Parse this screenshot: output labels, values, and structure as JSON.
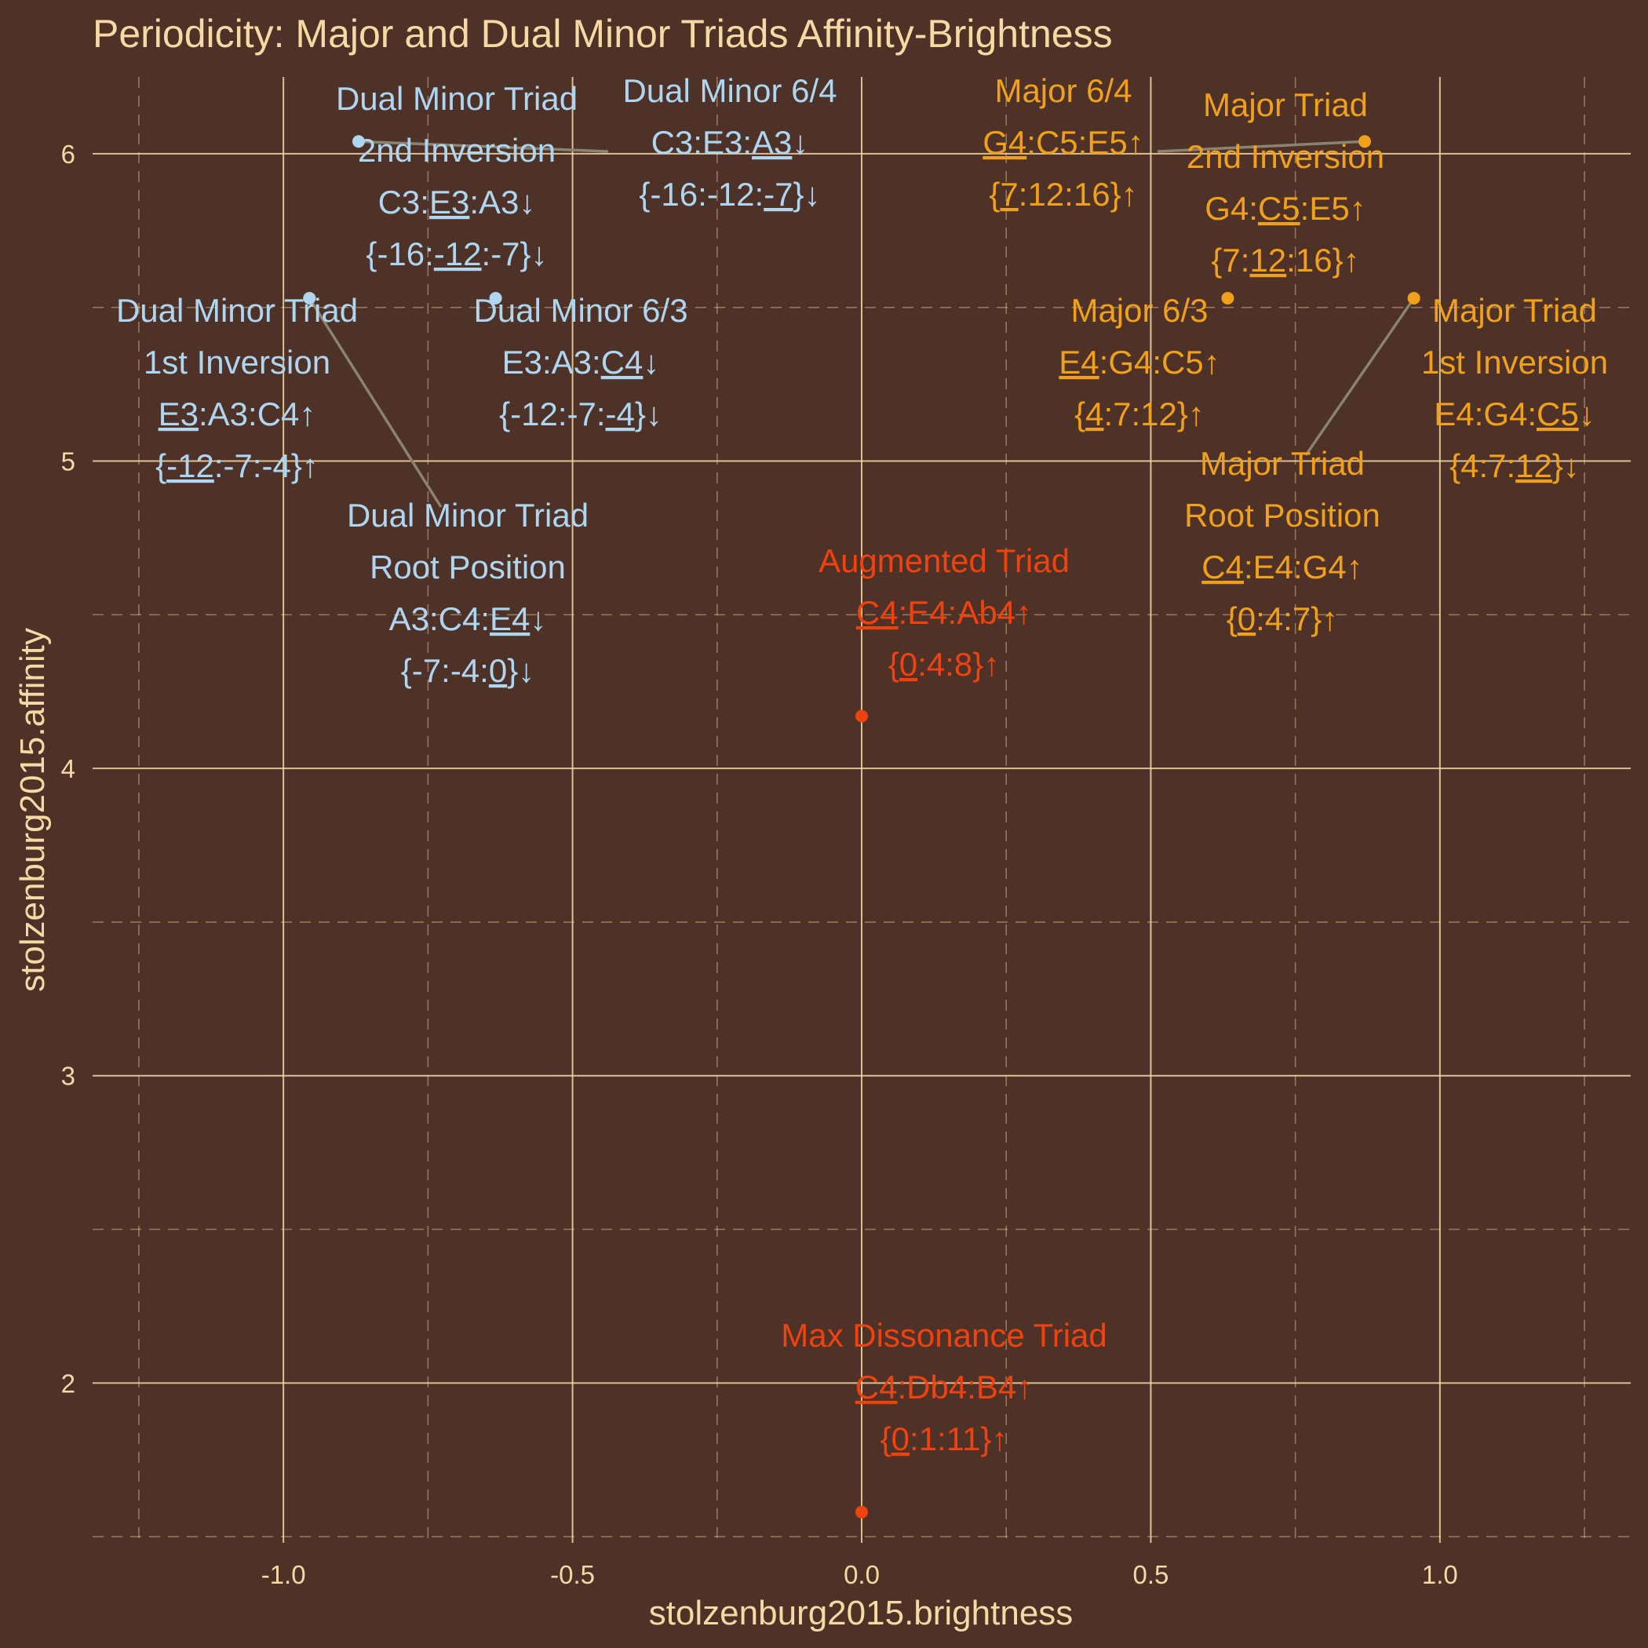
{
  "title": "Periodicity: Major and Dual Minor Triads Affinity-Brightness",
  "chart_data": {
    "type": "scatter",
    "title": "Periodicity: Major and Dual Minor Triads Affinity-Brightness",
    "xlabel": "stolzenburg2015.brightness",
    "ylabel": "stolzenburg2015.affinity",
    "xlim": [
      -1.33,
      1.33
    ],
    "ylim": [
      1.48,
      6.25
    ],
    "x_ticks": [
      -1.0,
      -0.5,
      0.0,
      0.5,
      1.0
    ],
    "x_tick_labels": [
      "-1.0",
      "-0.5",
      "0.0",
      "0.5",
      "1.0"
    ],
    "y_ticks": [
      2,
      3,
      4,
      5,
      6
    ],
    "y_tick_labels": [
      "2",
      "3",
      "4",
      "5",
      "6"
    ],
    "grid": true,
    "colors": {
      "background": "#4e3127",
      "grid": "#f7d9a4",
      "text": "#f7d9a4",
      "dual_minor": "#aed6f1",
      "major": "#f0a01a",
      "neutral": "#f0420e",
      "leader": "#8a8372"
    },
    "points": [
      {
        "group": "major",
        "x": 0.87,
        "y": 6.04,
        "lines": [
          "Major Triad",
          "2nd Inversion",
          "G4:C5:E5↑",
          "{7:12:16}↑"
        ]
      },
      {
        "group": "major",
        "x": 0.87,
        "y": 6.04,
        "lines": [
          "Major 6/4",
          "G4:C5:E5↑",
          "{7:12:16}↑"
        ]
      },
      {
        "group": "major",
        "x": 0.955,
        "y": 5.53,
        "lines": [
          "Major Triad",
          "1st Inversion",
          "E4:G4:C5↓",
          "{4:7:12}↓"
        ]
      },
      {
        "group": "major",
        "x": 0.955,
        "y": 5.53,
        "lines": [
          "Major Triad",
          "Root Position",
          "C4:E4:G4↑",
          "{0:4:7}↑"
        ]
      },
      {
        "group": "major",
        "x": 0.633,
        "y": 5.53,
        "lines": [
          "Major 6/3",
          "E4:G4:C5↑",
          "{4:7:12}↑"
        ]
      },
      {
        "group": "dual_minor",
        "x": -0.87,
        "y": 6.04,
        "lines": [
          "Dual Minor Triad",
          "2nd Inversion",
          "C3:E3:A3↓",
          "{-16:-12:-7}↓"
        ]
      },
      {
        "group": "dual_minor",
        "x": -0.87,
        "y": 6.04,
        "lines": [
          "Dual Minor 6/4",
          "C3:E3:A3↓",
          "{-16:-12:-7}↓"
        ]
      },
      {
        "group": "dual_minor",
        "x": -0.955,
        "y": 5.53,
        "lines": [
          "Dual Minor Triad",
          "1st Inversion",
          "E3:A3:C4↑",
          "{-12:-7:-4}↑"
        ]
      },
      {
        "group": "dual_minor",
        "x": -0.955,
        "y": 5.53,
        "lines": [
          "Dual Minor Triad",
          "Root Position",
          "A3:C4:E4↓",
          "{-7:-4:0}↓"
        ]
      },
      {
        "group": "dual_minor",
        "x": -0.633,
        "y": 5.53,
        "lines": [
          "Dual Minor 6/3",
          "E3:A3:C4↓",
          "{-12:-7:-4}↓"
        ]
      },
      {
        "group": "neutral",
        "x": 0.0,
        "y": 4.17,
        "lines": [
          "Augmented Triad",
          "C4:E4:Ab4↑",
          "{0:4:8}↑"
        ]
      },
      {
        "group": "neutral",
        "x": 0.0,
        "y": 1.58,
        "lines": [
          "Max Dissonance Triad",
          "C4:Db4:B4↑",
          "{0:1:11}↑"
        ]
      }
    ]
  }
}
